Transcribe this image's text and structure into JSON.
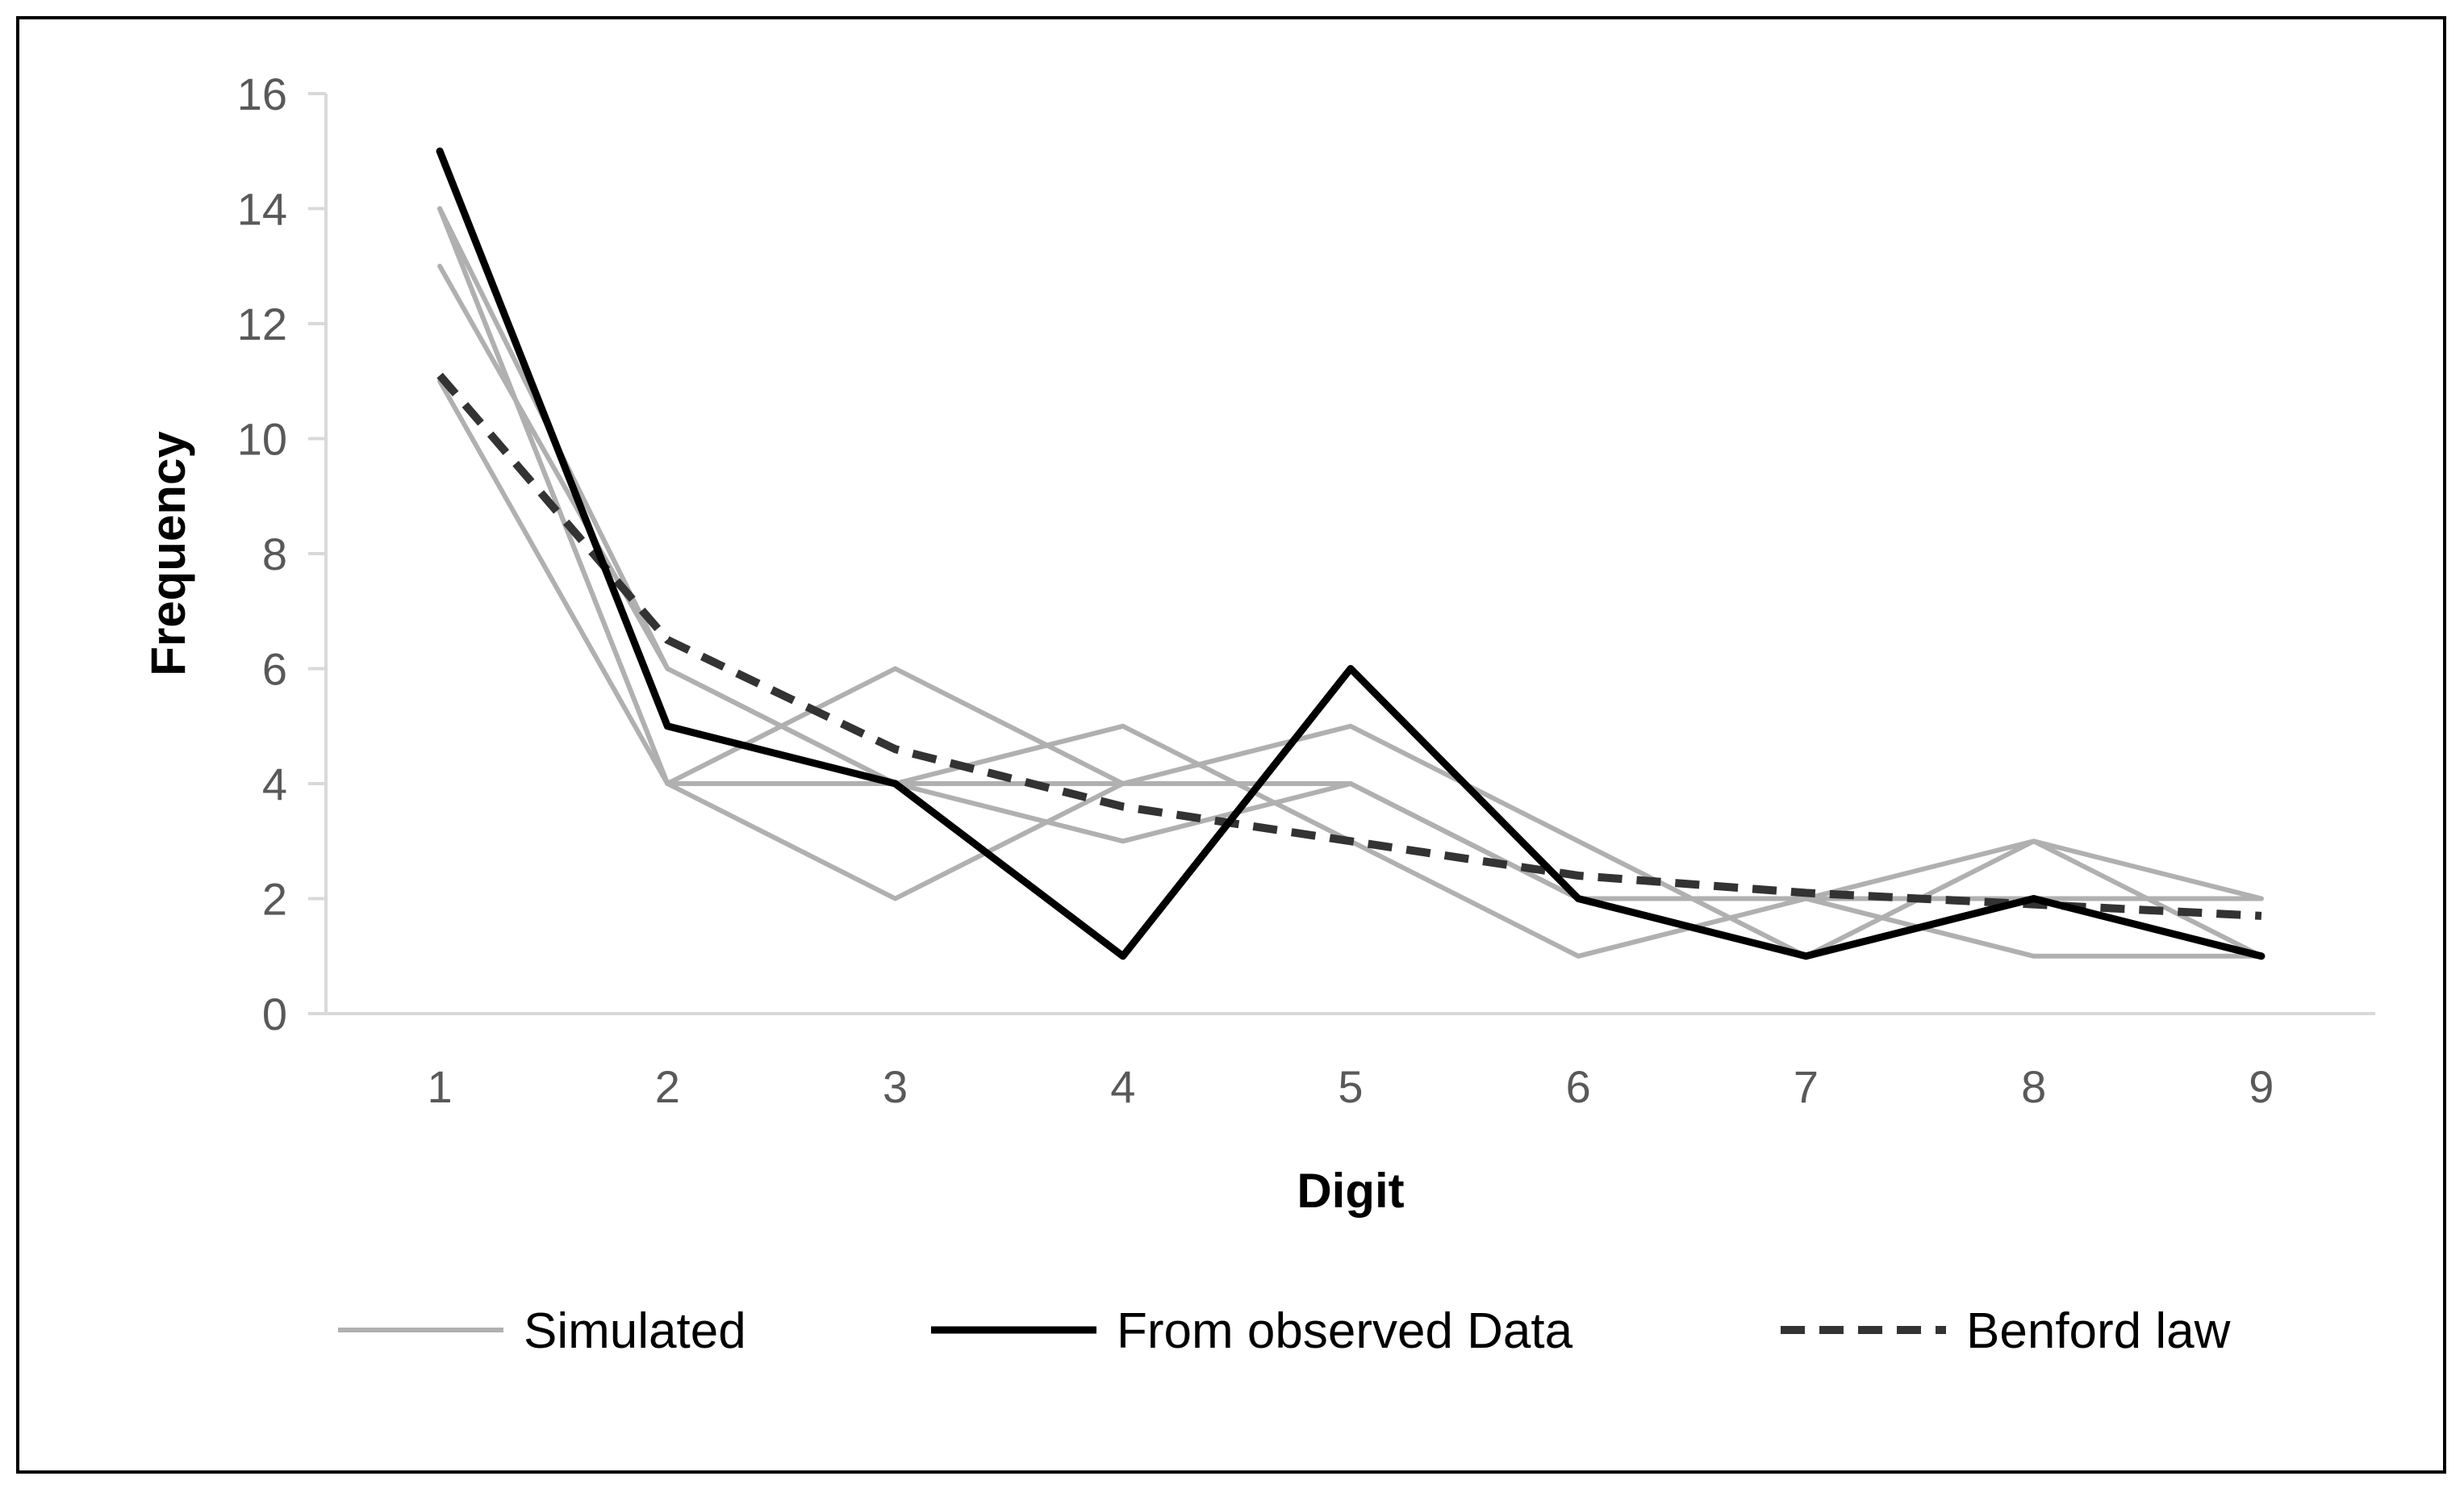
{
  "chart_data": {
    "type": "line",
    "title": "",
    "xlabel": "Digit",
    "ylabel": "Frequency",
    "categories": [
      "1",
      "2",
      "3",
      "4",
      "5",
      "6",
      "7",
      "8",
      "9"
    ],
    "ylim": [
      0,
      16
    ],
    "yticks": [
      "0",
      "2",
      "4",
      "6",
      "8",
      "10",
      "12",
      "14",
      "16"
    ],
    "grid": false,
    "legend_position": "bottom",
    "series": [
      {
        "name": "Simulated",
        "group": "Simulated",
        "style": "simulated",
        "values": [
          14,
          4,
          4,
          4,
          4,
          2,
          2,
          3,
          1
        ]
      },
      {
        "name": "Simulated",
        "group": "Simulated",
        "style": "simulated",
        "values": [
          13,
          6,
          4,
          5,
          3,
          1,
          2,
          1,
          1
        ]
      },
      {
        "name": "Simulated",
        "group": "Simulated",
        "style": "simulated",
        "values": [
          11,
          4,
          6,
          4,
          4,
          2,
          1,
          3,
          2
        ]
      },
      {
        "name": "Simulated",
        "group": "Simulated",
        "style": "simulated",
        "values": [
          14,
          4,
          2,
          4,
          5,
          3,
          1,
          2,
          2
        ]
      },
      {
        "name": "Simulated",
        "group": "Simulated",
        "style": "simulated",
        "values": [
          14,
          6,
          4,
          3,
          4,
          2,
          2,
          2,
          2
        ]
      },
      {
        "name": "From observed Data",
        "group": "From observed Data",
        "style": "observed",
        "values": [
          15,
          5,
          4,
          1,
          6,
          2,
          1,
          2,
          1
        ]
      },
      {
        "name": "Benford law",
        "group": "Benford law",
        "style": "benford",
        "values": [
          11.1,
          6.5,
          4.6,
          3.6,
          3.0,
          2.4,
          2.1,
          1.9,
          1.7
        ]
      }
    ],
    "legend": [
      {
        "label": "Simulated",
        "style": "simulated"
      },
      {
        "label": "From observed Data",
        "style": "observed"
      },
      {
        "label": "Benford law",
        "style": "benford"
      }
    ],
    "colors": {
      "simulated": "#b0b0b0",
      "observed": "#000000",
      "benford": "#333333",
      "axis": "#d9d9d9",
      "tick_text": "#595959"
    }
  }
}
